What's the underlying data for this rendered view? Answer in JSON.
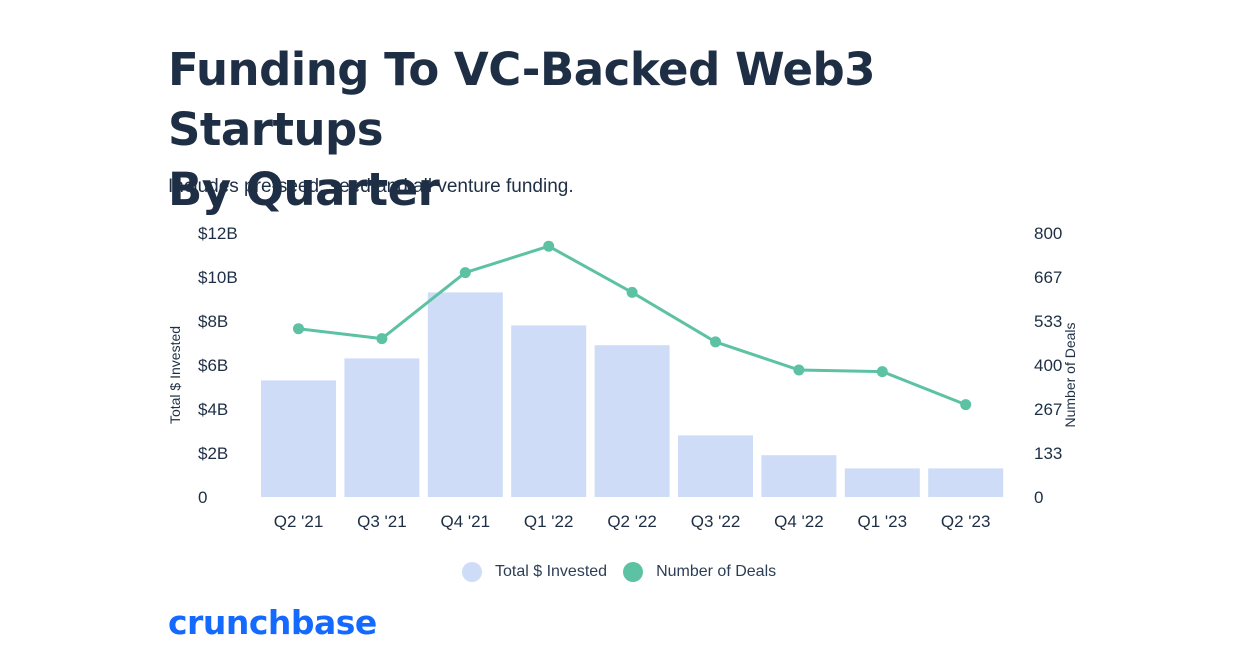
{
  "title_line1": "Funding To VC-Backed Web3 Startups",
  "title_line2": "By Quarter",
  "subtitle": "Includes pre-seed, seed and all venture funding.",
  "logo": "crunchbase",
  "colors": {
    "bar": "#cfdcf8",
    "line": "#5cc2a3",
    "text": "#1e2f45",
    "brand": "#146aff"
  },
  "chart_data": {
    "type": "bar",
    "categories": [
      "Q2 '21",
      "Q3 '21",
      "Q4 '21",
      "Q1 '22",
      "Q2 '22",
      "Q3 '22",
      "Q4 '22",
      "Q1 '23",
      "Q2 '23"
    ],
    "series": [
      {
        "name": "Total $ Invested",
        "type": "bar",
        "axis": "left",
        "values": [
          5.3,
          6.3,
          9.3,
          7.8,
          6.9,
          2.8,
          1.9,
          1.3,
          1.3
        ]
      },
      {
        "name": "Number of Deals",
        "type": "line",
        "axis": "right",
        "values": [
          510,
          480,
          680,
          760,
          620,
          470,
          385,
          380,
          280
        ]
      }
    ],
    "left_axis": {
      "label": "Total $ Invested",
      "ylim": [
        0,
        12
      ],
      "ticks": [
        "0",
        "$2B",
        "$4B",
        "$6B",
        "$8B",
        "$10B",
        "$12B"
      ]
    },
    "right_axis": {
      "label": "Number of Deals",
      "ylim": [
        0,
        800
      ],
      "ticks": [
        "0",
        "133",
        "267",
        "400",
        "533",
        "667",
        "800"
      ]
    },
    "grid": false,
    "legend_position": "bottom-center"
  }
}
